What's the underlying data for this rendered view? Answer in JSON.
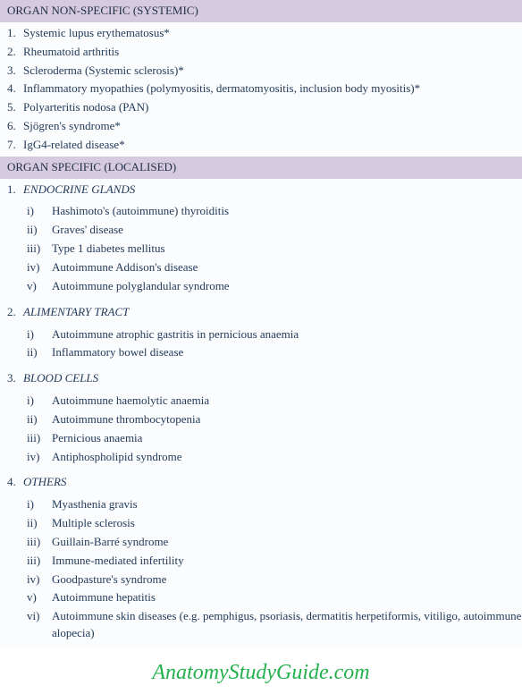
{
  "colors": {
    "header_bg": "#d6cbde",
    "body_bg": "#fbfcfe",
    "text": "#233b5b",
    "watermark": "#23b14d"
  },
  "section1": {
    "title": "ORGAN NON-SPECIFIC (SYSTEMIC)",
    "items": [
      {
        "n": "1.",
        "t": "Systemic lupus erythematosus*"
      },
      {
        "n": "2.",
        "t": "Rheumatoid arthritis"
      },
      {
        "n": "3.",
        "t": "Scleroderma (Systemic sclerosis)*"
      },
      {
        "n": "4.",
        "t": "Inflammatory myopathies (polymyositis, dermatomyositis, inclusion body myositis)*"
      },
      {
        "n": "5.",
        "t": "Polyarteritis nodosa (PAN)"
      },
      {
        "n": "6.",
        "t": "Sjögren's syndrome*"
      },
      {
        "n": "7.",
        "t": "IgG4-related disease*"
      }
    ]
  },
  "section2": {
    "title": "ORGAN SPECIFIC (LOCALISED)",
    "categories": [
      {
        "n": "1.",
        "name": "ENDOCRINE GLANDS",
        "items": [
          {
            "r": "i)",
            "t": "Hashimoto's (autoimmune) thyroiditis"
          },
          {
            "r": "ii)",
            "t": "Graves' disease"
          },
          {
            "r": "iii)",
            "t": "Type 1 diabetes mellitus"
          },
          {
            "r": "iv)",
            "t": "Autoimmune Addison's disease"
          },
          {
            "r": "v)",
            "t": "Autoimmune polyglandular syndrome"
          }
        ]
      },
      {
        "n": "2.",
        "name": "ALIMENTARY TRACT",
        "items": [
          {
            "r": "i)",
            "t": "Autoimmune atrophic gastritis in pernicious anaemia"
          },
          {
            "r": "ii)",
            "t": "Inflammatory bowel disease"
          }
        ]
      },
      {
        "n": "3.",
        "name": "BLOOD CELLS",
        "items": [
          {
            "r": "i)",
            "t": "Autoimmune haemolytic anaemia"
          },
          {
            "r": "ii)",
            "t": "Autoimmune thrombocytopenia"
          },
          {
            "r": "iii)",
            "t": "Pernicious anaemia"
          },
          {
            "r": "iv)",
            "t": "Antiphospholipid syndrome"
          }
        ]
      },
      {
        "n": "4.",
        "name": "OTHERS",
        "items": [
          {
            "r": "i)",
            "t": "Myasthenia gravis"
          },
          {
            "r": "ii)",
            "t": "Multiple sclerosis"
          },
          {
            "r": "iii)",
            "t": "Guillain-Barré syndrome"
          },
          {
            "r": "iii)",
            "t": "Immune-mediated infertility"
          },
          {
            "r": "iv)",
            "t": "Goodpasture's syndrome"
          },
          {
            "r": "v)",
            "t": "Autoimmune hepatitis"
          },
          {
            "r": "vi)",
            "t": "Autoimmune skin diseases (e.g. pemphigus, psoriasis, dermatitis herpetiformis, vitiligo, autoimmune alopecia)"
          }
        ]
      }
    ]
  },
  "watermark": "AnatomyStudyGuide.com"
}
